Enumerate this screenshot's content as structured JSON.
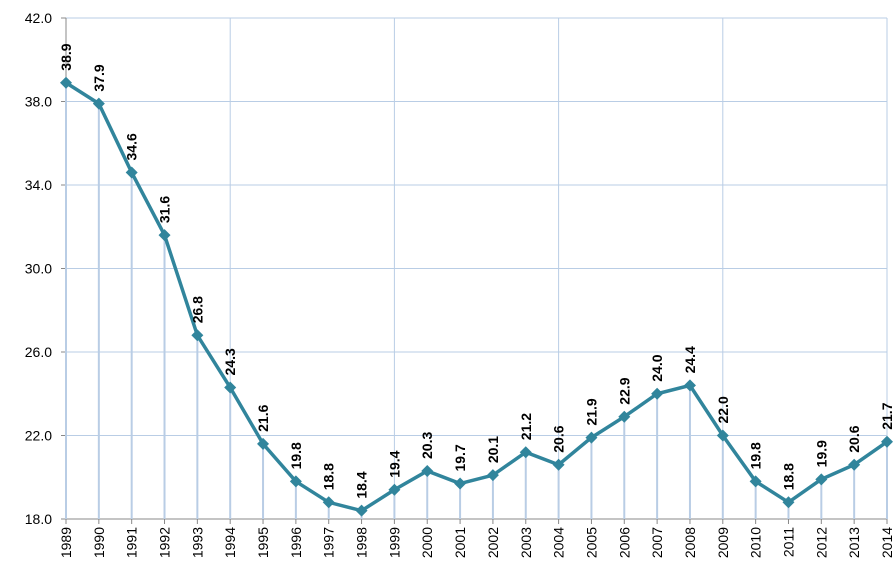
{
  "chart_data": {
    "type": "line",
    "categories": [
      "1989",
      "1990",
      "1991",
      "1992",
      "1993",
      "1994",
      "1995",
      "1996",
      "1997",
      "1998",
      "1999",
      "2000",
      "2001",
      "2002",
      "2003",
      "2004",
      "2005",
      "2006",
      "2007",
      "2008",
      "2009",
      "2010",
      "2011",
      "2012",
      "2013",
      "2014"
    ],
    "series": [
      {
        "color": "#31859c",
        "values": [
          38.9,
          37.9,
          34.6,
          31.6,
          26.8,
          24.3,
          21.6,
          19.8,
          18.8,
          18.4,
          19.4,
          20.3,
          19.7,
          20.1,
          21.2,
          20.6,
          21.9,
          22.9,
          24.0,
          24.4,
          22.0,
          19.8,
          18.8,
          19.9,
          20.6,
          21.7
        ],
        "value_labels": [
          "38.9",
          "37.9",
          "34.6",
          "31.6",
          "26.8",
          "24.3",
          "21.6",
          "19.8",
          "18.8",
          "18.4",
          "19.4",
          "20.3",
          "19.7",
          "20.1",
          "21.2",
          "20.6",
          "21.9",
          "22.9",
          "24.0",
          "24.4",
          "22.0",
          "19.8",
          "18.8",
          "19.9",
          "20.6",
          "21.7"
        ]
      }
    ],
    "ylim": [
      18,
      42
    ],
    "yticks": [
      {
        "value": 18,
        "label": "18.0"
      },
      {
        "value": 22,
        "label": "22.0"
      },
      {
        "value": 26,
        "label": "26.0"
      },
      {
        "value": 30,
        "label": "30.0"
      },
      {
        "value": 34,
        "label": "34.0"
      },
      {
        "value": 38,
        "label": "38.0"
      },
      {
        "value": 42,
        "label": "42.0"
      }
    ],
    "grid": true
  }
}
